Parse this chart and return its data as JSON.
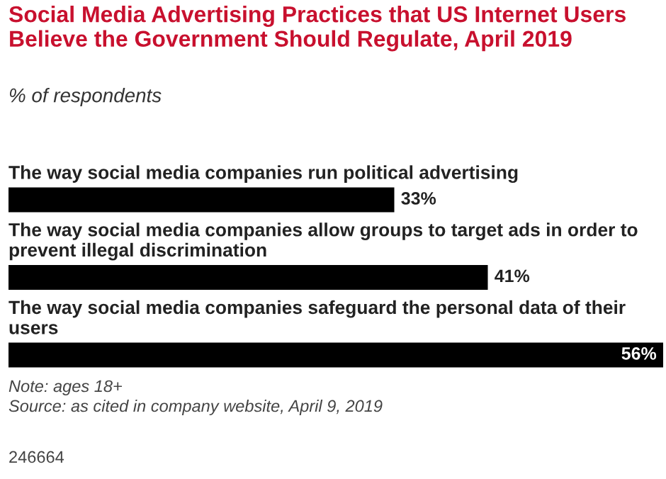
{
  "chart_data": {
    "type": "bar",
    "orientation": "horizontal",
    "title": "Social Media Advertising Practices that US Internet Users Believe the Government Should Regulate, April 2019",
    "subtitle": "% of respondents",
    "categories": [
      "The way social media companies run political advertising",
      "The way social media companies allow groups to target ads in order to prevent illegal discrimination",
      "The way social media companies safeguard the personal data of their users"
    ],
    "values": [
      33,
      41,
      56
    ],
    "value_labels": [
      "33%",
      "41%",
      "56%"
    ],
    "color": "#000000",
    "annotations": [
      "Note: ages 18+",
      "Source: as cited in company website, April 9, 2019",
      "246664"
    ]
  }
}
